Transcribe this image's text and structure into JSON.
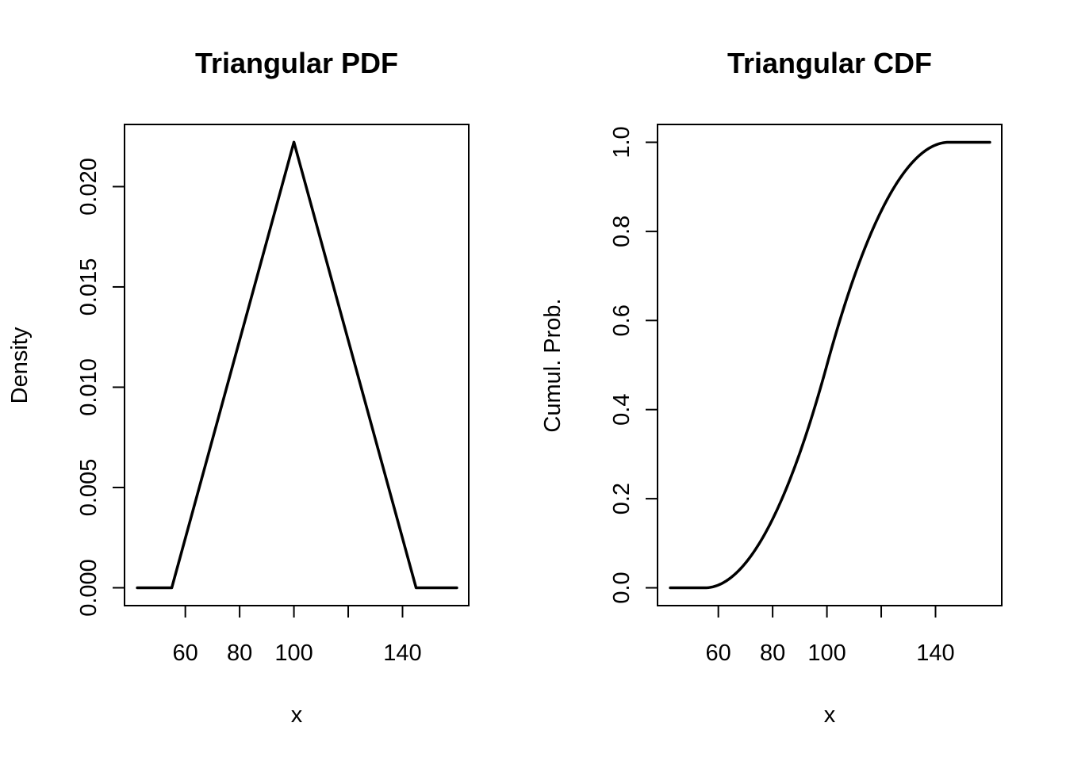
{
  "chart_data": [
    {
      "type": "line",
      "title": "Triangular PDF",
      "xlabel": "x",
      "ylabel": "Density",
      "xlim": [
        37.6,
        164.4
      ],
      "ylim": [
        -0.00089,
        0.0231
      ],
      "xticks": [
        60,
        80,
        100,
        120,
        140
      ],
      "xtick_labels": [
        "60",
        "80",
        "100",
        "",
        "140"
      ],
      "yticks": [
        0,
        0.005,
        0.01,
        0.015,
        0.02
      ],
      "ytick_labels": [
        "0.000",
        "0.005",
        "0.010",
        "0.015",
        "0.020"
      ],
      "grid": false,
      "series": [
        {
          "x": [
            42.3,
            55,
            100,
            145,
            160
          ],
          "y": [
            0,
            0,
            0.02222,
            0,
            0
          ]
        }
      ]
    },
    {
      "type": "line",
      "title": "Triangular CDF",
      "xlabel": "x",
      "ylabel": "Cumul. Prob.",
      "xlim": [
        37.6,
        164.4
      ],
      "ylim": [
        -0.04,
        1.04
      ],
      "xticks": [
        60,
        80,
        100,
        120,
        140
      ],
      "xtick_labels": [
        "60",
        "80",
        "100",
        "",
        "140"
      ],
      "yticks": [
        0,
        0.2,
        0.4,
        0.6,
        0.8,
        1.0
      ],
      "ytick_labels": [
        "0.0",
        "0.2",
        "0.4",
        "0.6",
        "0.8",
        "1.0"
      ],
      "grid": false,
      "distribution": {
        "min": 55,
        "mode": 100,
        "max": 145
      },
      "x_range": [
        42.3,
        160
      ]
    }
  ]
}
